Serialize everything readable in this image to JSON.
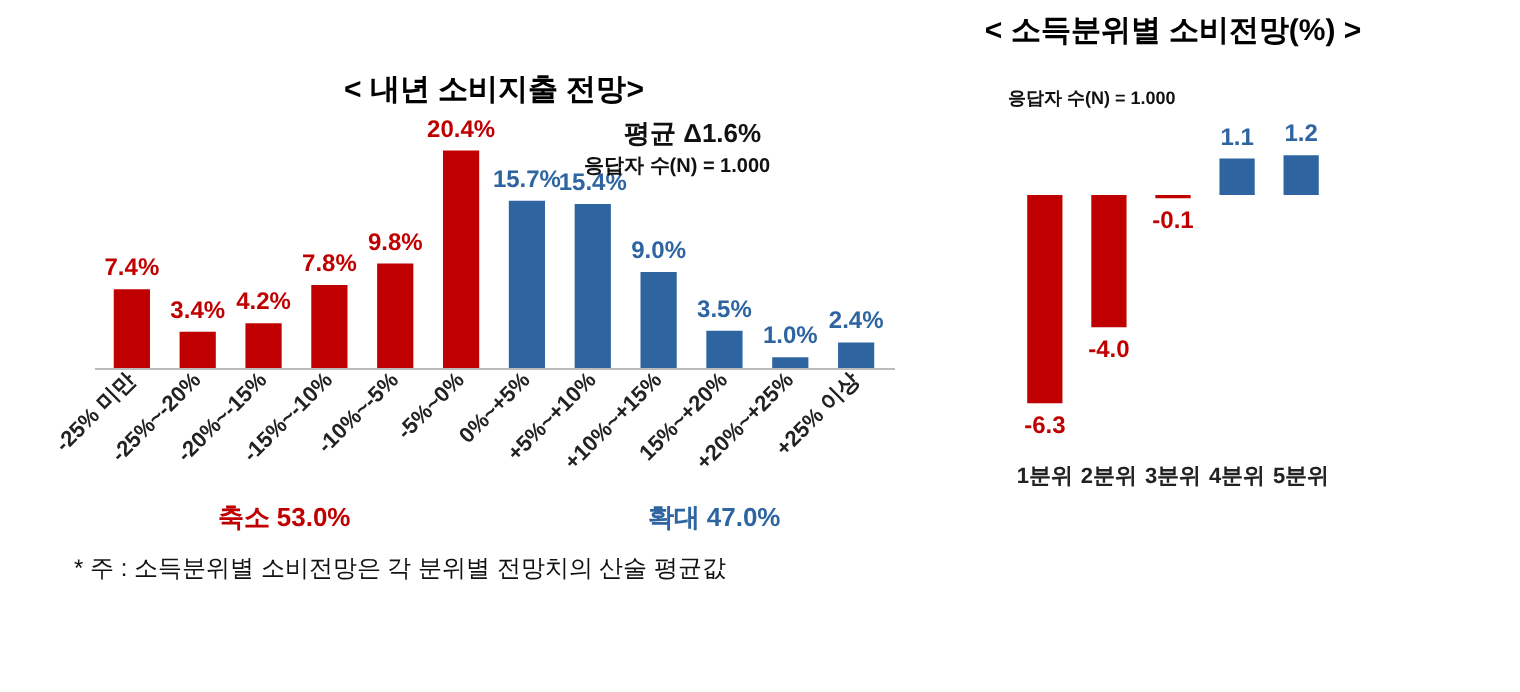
{
  "chart_data": [
    {
      "type": "bar",
      "title": "< 내년 소비지출 전망>",
      "categories": [
        "-25% 미만",
        "-25%~-20%",
        "-20%~-15%",
        "-15%~-10%",
        "-10%~-5%",
        "-5%~0%",
        "0%~+5%",
        "+5%~+10%",
        "+10%~+15%",
        "15%~+20%",
        "+20%~+25%",
        "+25% 이상"
      ],
      "values": [
        7.4,
        3.4,
        4.2,
        7.8,
        9.8,
        20.4,
        15.7,
        15.4,
        9.0,
        3.5,
        1.0,
        2.4
      ],
      "colors": [
        "#c00000",
        "#c00000",
        "#c00000",
        "#c00000",
        "#c00000",
        "#c00000",
        "#2e65a1",
        "#2e65a1",
        "#2e65a1",
        "#2e65a1",
        "#2e65a1",
        "#2e65a1"
      ],
      "value_labels": [
        "7.4%",
        "3.4%",
        "4.2%",
        "7.8%",
        "9.8%",
        "20.4%",
        "15.7%",
        "15.4%",
        "9.0%",
        "3.5%",
        "1.0%",
        "2.4%"
      ],
      "annotations": [
        "평균 Δ1.6%",
        "응답자 수(N) = 1.000",
        "축소 53.0%",
        "확대 47.0%",
        "* 주 : 소득분위별 소비전망은 각 분위별 전망치의 산술 평균값"
      ]
    },
    {
      "type": "bar",
      "title": "< 소득분위별 소비전망(%) >",
      "categories": [
        "1분위",
        "2분위",
        "3분위",
        "4분위",
        "5분위"
      ],
      "values": [
        -6.3,
        -4.0,
        -0.1,
        1.1,
        1.2
      ],
      "colors": [
        "#c00000",
        "#c00000",
        "#c00000",
        "#2e65a1",
        "#2e65a1"
      ],
      "value_labels": [
        "-6.3",
        "-4.0",
        "-0.1",
        "1.1",
        "1.2"
      ],
      "annotations": [
        "응답자 수(N) = 1.000"
      ]
    }
  ]
}
